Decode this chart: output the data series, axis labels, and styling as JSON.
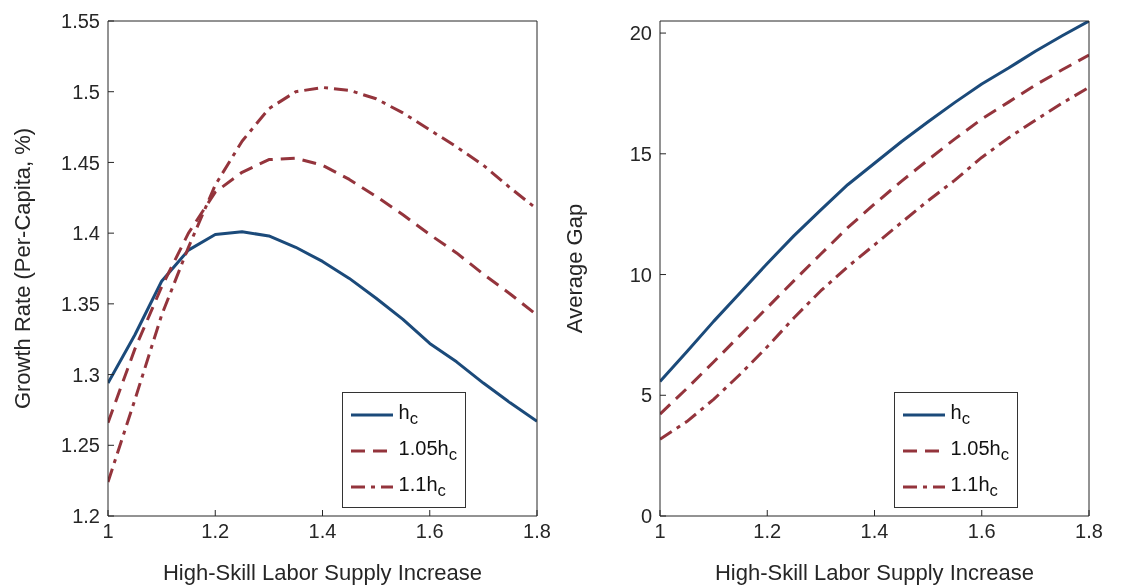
{
  "chart_data": [
    {
      "type": "line",
      "xlabel": "High-Skill Labor Supply Increase",
      "ylabel": "Growth Rate (Per-Capita, %)",
      "x": [
        1,
        1.05,
        1.1,
        1.15,
        1.2,
        1.25,
        1.3,
        1.35,
        1.4,
        1.45,
        1.5,
        1.55,
        1.6,
        1.65,
        1.7,
        1.75,
        1.8
      ],
      "series": [
        {
          "name": "h$_{c}$",
          "color": "#1b4a7a",
          "line_style": "solid",
          "values": [
            1.294,
            1.328,
            1.366,
            1.388,
            1.399,
            1.401,
            1.398,
            1.39,
            1.38,
            1.368,
            1.354,
            1.339,
            1.322,
            1.309,
            1.294,
            1.28,
            1.267
          ]
        },
        {
          "name": "1.05h$_{c}$",
          "color": "#94343c",
          "line_style": "dashed",
          "values": [
            1.266,
            1.318,
            1.362,
            1.4,
            1.429,
            1.443,
            1.452,
            1.453,
            1.448,
            1.438,
            1.426,
            1.413,
            1.399,
            1.386,
            1.371,
            1.357,
            1.342
          ]
        },
        {
          "name": "1.1h$_{c}$",
          "color": "#94343c",
          "line_style": "dashdot",
          "values": [
            1.224,
            1.282,
            1.342,
            1.39,
            1.434,
            1.465,
            1.488,
            1.5,
            1.503,
            1.501,
            1.495,
            1.485,
            1.473,
            1.461,
            1.448,
            1.432,
            1.417
          ]
        }
      ],
      "xlim": [
        1,
        1.8
      ],
      "xticks": [
        1,
        1.2,
        1.4,
        1.6,
        1.8
      ],
      "ylim": [
        1.2,
        1.55
      ],
      "yticks": [
        1.2,
        1.25,
        1.3,
        1.35,
        1.4,
        1.45,
        1.5,
        1.55
      ],
      "grid": false,
      "legend": "bottom right",
      "marker": "none"
    },
    {
      "type": "line",
      "xlabel": "High-Skill Labor Supply Increase",
      "ylabel": "Average Gap",
      "x": [
        1,
        1.05,
        1.1,
        1.15,
        1.2,
        1.25,
        1.3,
        1.35,
        1.4,
        1.45,
        1.5,
        1.55,
        1.6,
        1.65,
        1.7,
        1.75,
        1.8
      ],
      "series": [
        {
          "name": "h$_{c}$",
          "color": "#1b4a7a",
          "line_style": "solid",
          "values": [
            5.57,
            6.8,
            8.06,
            9.26,
            10.46,
            11.61,
            12.68,
            13.72,
            14.61,
            15.5,
            16.33,
            17.13,
            17.89,
            18.55,
            19.25,
            19.89,
            20.5
          ]
        },
        {
          "name": "1.05h$_{c}$",
          "color": "#94343c",
          "line_style": "dashed",
          "values": [
            4.22,
            5.28,
            6.38,
            7.5,
            8.63,
            9.75,
            10.85,
            11.94,
            12.92,
            13.86,
            14.75,
            15.62,
            16.44,
            17.14,
            17.85,
            18.48,
            19.09
          ]
        },
        {
          "name": "1.1h$_{c}$",
          "color": "#94343c",
          "line_style": "dashdot",
          "values": [
            3.18,
            3.91,
            4.83,
            5.88,
            7.01,
            8.21,
            9.33,
            10.32,
            11.23,
            12.15,
            13.06,
            13.91,
            14.85,
            15.66,
            16.39,
            17.1,
            17.75
          ]
        }
      ],
      "xlim": [
        1,
        1.8
      ],
      "xticks": [
        1,
        1.2,
        1.4,
        1.6,
        1.8
      ],
      "ylim": [
        0,
        20.5
      ],
      "yticks": [
        0,
        5,
        10,
        15,
        20
      ],
      "grid": false,
      "legend": "bottom right",
      "marker": "none"
    }
  ]
}
